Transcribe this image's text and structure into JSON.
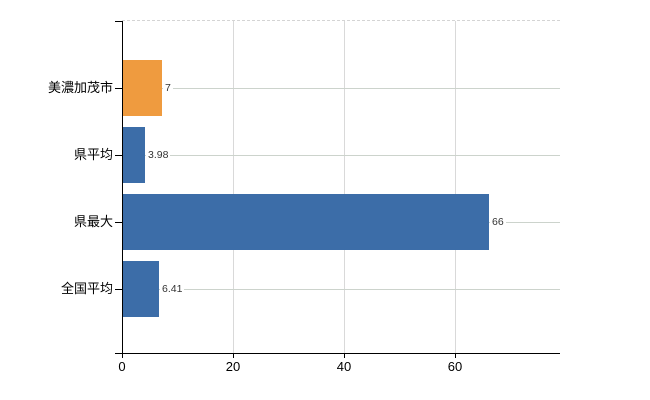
{
  "chart_data": {
    "type": "bar",
    "orientation": "horizontal",
    "title": "",
    "xlabel": "",
    "ylabel": "",
    "categories": [
      "美濃加茂市",
      "県平均",
      "県最大",
      "全国平均"
    ],
    "values": [
      7,
      3.98,
      66,
      6.41
    ],
    "value_labels": [
      "7",
      "3.98",
      "66",
      "6.41"
    ],
    "bar_colors": [
      "#ef9b3f",
      "#3c6da8",
      "#3c6da8",
      "#3c6da8"
    ],
    "x_ticks": [
      0,
      20,
      40,
      60
    ],
    "x_tick_labels": [
      "0",
      "20",
      "40",
      "60"
    ],
    "xlim": [
      0,
      79
    ],
    "grid": "vertical light gray lines at ticks, dashed top border, faint horizontal line per category row",
    "legend": "none",
    "colors": {
      "accent_orange": "#ef9b3f",
      "accent_blue": "#3c6da8",
      "axis": "#000000",
      "vertical_gridline": "#d9d9d9",
      "row_line": "#ccd3cc",
      "top_dashed_line": "#d4d4d4",
      "value_text": "#333333",
      "category_text": "#000000",
      "background": "#ffffff"
    }
  }
}
